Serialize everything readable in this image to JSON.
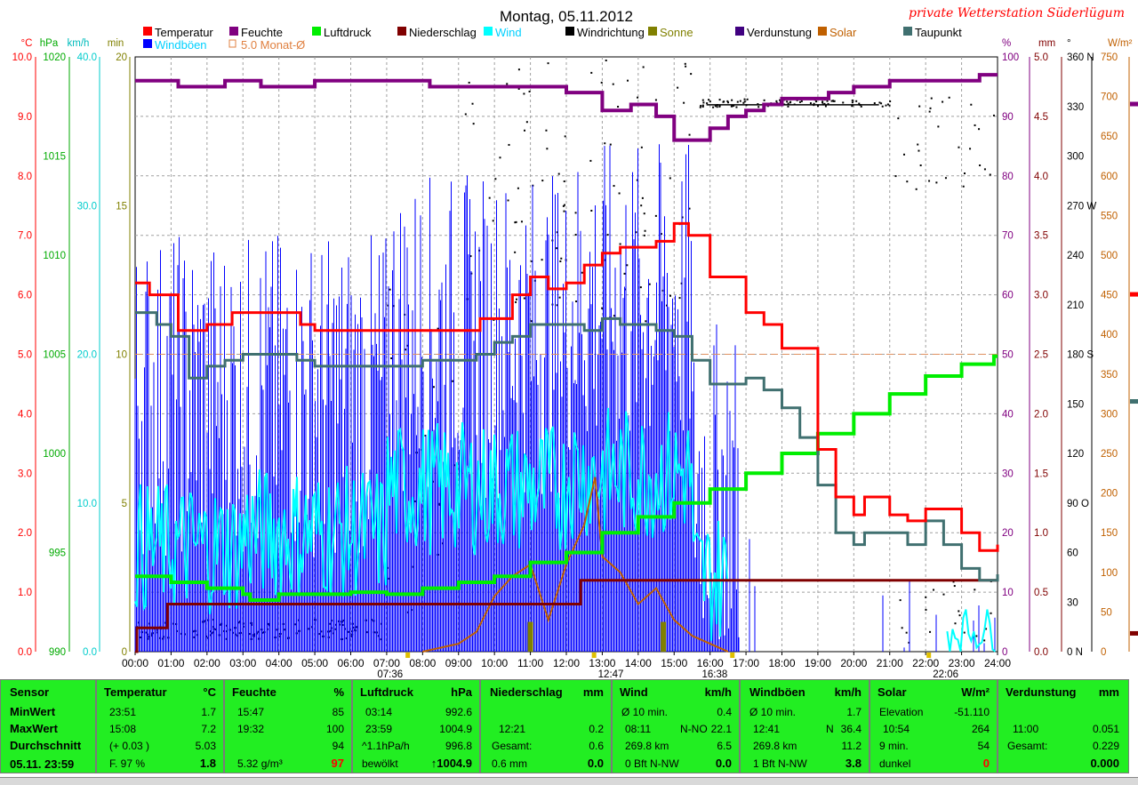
{
  "header": {
    "title": "Montag, 05.11.2012",
    "station": "private Wetterstation Süderlügum"
  },
  "legend": [
    {
      "label": "Temperatur",
      "color": "#ff0000"
    },
    {
      "label": "Feuchte",
      "color": "#800080"
    },
    {
      "label": "Luftdruck",
      "color": "#00ee00"
    },
    {
      "label": "Niederschlag",
      "color": "#800000"
    },
    {
      "label": "Wind",
      "color": "#00ffff"
    },
    {
      "label": "Windrichtung",
      "color": "#000000"
    },
    {
      "label": "Sonne",
      "color": "#808000"
    },
    {
      "label": "Verdunstung",
      "color": "#400080"
    },
    {
      "label": "Solar",
      "color": "#c06000"
    },
    {
      "label": "Taupunkt",
      "color": "#407070"
    },
    {
      "label": "Windböen",
      "color": "#0000ff"
    },
    {
      "label": "5.0 Monat-Ø",
      "color": "#e08040"
    }
  ],
  "axes": {
    "left_units": [
      "°C",
      "hPa",
      "km/h",
      "min"
    ],
    "right_units": [
      "%",
      "mm",
      "°",
      "W/m²"
    ],
    "temp_ticks": [
      "10.0",
      "9.0",
      "8.0",
      "7.0",
      "6.0",
      "5.0",
      "4.0",
      "3.0",
      "2.0",
      "1.0",
      "0.0"
    ],
    "hpa_ticks": [
      "1020",
      "1015",
      "1010",
      "1005",
      "1000",
      "995",
      "990"
    ],
    "kmh_ticks": [
      "40.0",
      "30.0",
      "20.0",
      "10.0",
      "0.0"
    ],
    "min_ticks": [
      "20",
      "15",
      "10",
      "5",
      "0"
    ],
    "pct_ticks": [
      "100",
      "90",
      "80",
      "70",
      "60",
      "50",
      "40",
      "30",
      "20",
      "10",
      "0"
    ],
    "mm_ticks": [
      "5.0",
      "4.5",
      "4.0",
      "3.5",
      "3.0",
      "2.5",
      "2.0",
      "1.5",
      "1.0",
      "0.5",
      "0.0"
    ],
    "deg_ticks": [
      "360 N",
      "330",
      "300",
      "270 W",
      "240",
      "210",
      "180 S",
      "150",
      "120",
      "90  O",
      "60",
      "30",
      "0   N"
    ],
    "wm2_ticks": [
      "750",
      "700",
      "650",
      "600",
      "550",
      "500",
      "450",
      "400",
      "350",
      "300",
      "250",
      "200",
      "150",
      "100",
      "50",
      "0"
    ],
    "x_ticks": [
      "00:00",
      "01:00",
      "02:00",
      "03:00",
      "04:00",
      "05:00",
      "06:00",
      "07:00",
      "08:00",
      "09:00",
      "10:00",
      "11:00",
      "12:00",
      "13:00",
      "14:00",
      "15:00",
      "16:00",
      "17:00",
      "18:00",
      "19:00",
      "20:00",
      "21:00",
      "22:00",
      "23:00",
      "24:00"
    ],
    "x_markers": [
      "07:36",
      "12:47",
      "16:38",
      "22:06"
    ]
  },
  "chart_data": {
    "type": "line",
    "title": "Montag, 05.11.2012",
    "x_unit": "time of day (hours)",
    "xlim": [
      0,
      24
    ],
    "grid": true,
    "series": [
      {
        "name": "Temperatur",
        "unit": "°C",
        "ylim": [
          0,
          10
        ],
        "points": [
          [
            0,
            6.2
          ],
          [
            0.4,
            6.0
          ],
          [
            1.2,
            5.4
          ],
          [
            2,
            5.5
          ],
          [
            2.7,
            5.7
          ],
          [
            3.5,
            5.7
          ],
          [
            4.2,
            5.7
          ],
          [
            4.6,
            5.5
          ],
          [
            5,
            5.4
          ],
          [
            6,
            5.4
          ],
          [
            7,
            5.4
          ],
          [
            8,
            5.4
          ],
          [
            9,
            5.4
          ],
          [
            9.6,
            5.6
          ],
          [
            10.5,
            6.0
          ],
          [
            11,
            6.3
          ],
          [
            11.5,
            6.1
          ],
          [
            12,
            6.2
          ],
          [
            12.5,
            6.5
          ],
          [
            13,
            6.7
          ],
          [
            13.5,
            6.8
          ],
          [
            14.5,
            6.9
          ],
          [
            15,
            7.2
          ],
          [
            15.4,
            7.0
          ],
          [
            16,
            6.3
          ],
          [
            17,
            5.7
          ],
          [
            17.5,
            5.5
          ],
          [
            18,
            5.1
          ],
          [
            19,
            3.4
          ],
          [
            19.5,
            2.6
          ],
          [
            20,
            2.3
          ],
          [
            20.3,
            2.6
          ],
          [
            21,
            2.3
          ],
          [
            21.5,
            2.2
          ],
          [
            22,
            2.4
          ],
          [
            22.5,
            2.4
          ],
          [
            23,
            2.0
          ],
          [
            23.5,
            1.7
          ],
          [
            24,
            1.8
          ]
        ]
      },
      {
        "name": "Feuchte",
        "unit": "%",
        "ylim": [
          0,
          100
        ],
        "points": [
          [
            0,
            96
          ],
          [
            1,
            96
          ],
          [
            1.2,
            95
          ],
          [
            2,
            95
          ],
          [
            2.5,
            96
          ],
          [
            3,
            96
          ],
          [
            3.5,
            95
          ],
          [
            5,
            96
          ],
          [
            8,
            96
          ],
          [
            8.2,
            95
          ],
          [
            9,
            95
          ],
          [
            10,
            95
          ],
          [
            12,
            94
          ],
          [
            12.5,
            94
          ],
          [
            13,
            91
          ],
          [
            13.8,
            92
          ],
          [
            14.5,
            90
          ],
          [
            15,
            86
          ],
          [
            15.8,
            86
          ],
          [
            16,
            88
          ],
          [
            16.5,
            90
          ],
          [
            17,
            91
          ],
          [
            17.5,
            92
          ],
          [
            18,
            93
          ],
          [
            19,
            93
          ],
          [
            19.3,
            94
          ],
          [
            20,
            95
          ],
          [
            20.5,
            95
          ],
          [
            21,
            96
          ],
          [
            23,
            96
          ],
          [
            23.5,
            97
          ],
          [
            24,
            97
          ]
        ]
      },
      {
        "name": "Luftdruck",
        "unit": "hPa",
        "ylim": [
          990,
          1020
        ],
        "points": [
          [
            0,
            993.8
          ],
          [
            1,
            993.5
          ],
          [
            2,
            993.2
          ],
          [
            3,
            992.9
          ],
          [
            3.2,
            992.6
          ],
          [
            4,
            992.9
          ],
          [
            5,
            992.9
          ],
          [
            6,
            993.0
          ],
          [
            7,
            992.9
          ],
          [
            8,
            993.2
          ],
          [
            9,
            993.5
          ],
          [
            10,
            993.8
          ],
          [
            11,
            994.5
          ],
          [
            12,
            995.0
          ],
          [
            13,
            996.0
          ],
          [
            14,
            996.8
          ],
          [
            15,
            997.5
          ],
          [
            16,
            998.2
          ],
          [
            17,
            999.0
          ],
          [
            18,
            1000.0
          ],
          [
            19,
            1001.0
          ],
          [
            20,
            1002.0
          ],
          [
            21,
            1003.0
          ],
          [
            22,
            1003.9
          ],
          [
            23,
            1004.5
          ],
          [
            23.9,
            1004.9
          ],
          [
            24,
            1004.9
          ]
        ]
      },
      {
        "name": "Taupunkt",
        "unit": "°C",
        "ylim": [
          0,
          10
        ],
        "points": [
          [
            0,
            5.7
          ],
          [
            0.6,
            5.5
          ],
          [
            1,
            5.3
          ],
          [
            1.5,
            4.6
          ],
          [
            2,
            4.8
          ],
          [
            2.5,
            4.9
          ],
          [
            3,
            5.0
          ],
          [
            4,
            5.0
          ],
          [
            4.5,
            4.9
          ],
          [
            5,
            4.8
          ],
          [
            6,
            4.8
          ],
          [
            7,
            4.8
          ],
          [
            8,
            4.9
          ],
          [
            9,
            4.9
          ],
          [
            9.5,
            5.0
          ],
          [
            10,
            5.2
          ],
          [
            10.5,
            5.3
          ],
          [
            11,
            5.5
          ],
          [
            12,
            5.5
          ],
          [
            12.5,
            5.4
          ],
          [
            13,
            5.6
          ],
          [
            13.5,
            5.5
          ],
          [
            14,
            5.5
          ],
          [
            14.5,
            5.4
          ],
          [
            15,
            5.3
          ],
          [
            15.5,
            4.9
          ],
          [
            16,
            4.5
          ],
          [
            16.5,
            4.5
          ],
          [
            17,
            4.6
          ],
          [
            17.5,
            4.4
          ],
          [
            18,
            4.1
          ],
          [
            18.5,
            3.6
          ],
          [
            19,
            2.8
          ],
          [
            19.5,
            2.0
          ],
          [
            20,
            1.8
          ],
          [
            20.3,
            2.0
          ],
          [
            21,
            2.0
          ],
          [
            21.5,
            1.8
          ],
          [
            22,
            2.2
          ],
          [
            22.5,
            1.8
          ],
          [
            23,
            1.4
          ],
          [
            23.5,
            1.2
          ],
          [
            24,
            1.3
          ]
        ]
      },
      {
        "name": "Niederschlag",
        "unit": "mm",
        "ylim": [
          0,
          5
        ],
        "points": [
          [
            0,
            0
          ],
          [
            0.05,
            0.2
          ],
          [
            0.8,
            0.2
          ],
          [
            0.9,
            0.4
          ],
          [
            12.3,
            0.4
          ],
          [
            12.4,
            0.6
          ],
          [
            24,
            0.6
          ]
        ]
      },
      {
        "name": "Solar",
        "unit": "W/m²",
        "ylim": [
          0,
          750
        ],
        "points": [
          [
            8,
            0
          ],
          [
            8.5,
            5
          ],
          [
            9,
            10
          ],
          [
            9.5,
            25
          ],
          [
            10,
            70
          ],
          [
            10.5,
            95
          ],
          [
            11,
            110
          ],
          [
            11.5,
            40
          ],
          [
            12,
            110
          ],
          [
            12.5,
            160
          ],
          [
            12.8,
            220
          ],
          [
            13,
            120
          ],
          [
            13.5,
            100
          ],
          [
            14,
            60
          ],
          [
            14.5,
            80
          ],
          [
            15,
            40
          ],
          [
            15.5,
            20
          ],
          [
            16,
            10
          ],
          [
            16.5,
            0
          ]
        ]
      },
      {
        "name": "Windböen",
        "unit": "km/h",
        "ylim": [
          0,
          40
        ],
        "values_max": 36.4,
        "values_avg": 11.2
      },
      {
        "name": "Wind",
        "unit": "km/h",
        "ylim": [
          0,
          40
        ],
        "values_max": 22.1,
        "values_avg": 6.5
      },
      {
        "name": "Sonne",
        "unit": "min",
        "ylim": [
          0,
          20
        ],
        "bars": [
          [
            11,
            1.0
          ],
          [
            14.7,
            1.0
          ]
        ]
      }
    ],
    "reference_line": {
      "name": "5.0 Monat-Ø",
      "unit": "°C",
      "value": 5.0
    }
  },
  "stats": {
    "sensor": {
      "header": "Sensor",
      "rows": [
        "MinWert",
        "MaxWert",
        "Durchschnitt",
        "05.11. 23:59"
      ]
    },
    "temperatur": {
      "header": "Temperatur",
      "unit": "°C",
      "rows": [
        [
          "23:51",
          "1.7"
        ],
        [
          "15:08",
          "7.2"
        ],
        [
          "(+ 0.03 )",
          "5.03"
        ],
        [
          "F. 97 %",
          "1.8"
        ]
      ]
    },
    "feuchte": {
      "header": "Feuchte",
      "unit": "%",
      "rows": [
        [
          "15:47",
          "85"
        ],
        [
          "19:32",
          "100"
        ],
        [
          "",
          "94"
        ],
        [
          "5.32 g/m³",
          "97"
        ]
      ]
    },
    "luftdruck": {
      "header": "Luftdruck",
      "unit": "hPa",
      "rows": [
        [
          "03:14",
          "992.6"
        ],
        [
          "23:59",
          "1004.9"
        ],
        [
          "^1.1hPa/h",
          "996.8"
        ],
        [
          "bewölkt",
          "1004.9"
        ]
      ]
    },
    "niederschlag": {
      "header": "Niederschlag",
      "unit": "mm",
      "rows": [
        [
          "",
          ""
        ],
        [
          "12:21",
          "0.2"
        ],
        [
          "Gesamt:",
          "0.6"
        ],
        [
          "0.6 mm",
          "0.0"
        ]
      ]
    },
    "wind": {
      "header": "Wind",
      "unit": "km/h",
      "rows": [
        [
          "Ø 10 min.",
          "",
          "0.4"
        ],
        [
          "08:11",
          "N-NO",
          "22.1"
        ],
        [
          "269.8 km",
          "",
          "6.5"
        ],
        [
          "0 Bft N-NW",
          "",
          "0.0"
        ]
      ]
    },
    "windboeen": {
      "header": "Windböen",
      "unit": "km/h",
      "rows": [
        [
          "Ø 10 min.",
          "",
          "1.7"
        ],
        [
          "12:41",
          "N",
          "36.4"
        ],
        [
          "269.8 km",
          "",
          "11.2"
        ],
        [
          "1 Bft N-NW",
          "",
          "3.8"
        ]
      ]
    },
    "solar": {
      "header": "Solar",
      "unit": "W/m²",
      "rows": [
        [
          "Elevation",
          "-51.110"
        ],
        [
          "10:54",
          "264"
        ],
        [
          "9 min.",
          "54"
        ],
        [
          "dunkel",
          "0"
        ]
      ]
    },
    "verdunstung": {
      "header": "Verdunstung",
      "unit": "mm",
      "rows": [
        [
          "",
          ""
        ],
        [
          "11:00",
          "0.051"
        ],
        [
          "Gesamt:",
          "0.229"
        ],
        [
          "",
          "0.000"
        ]
      ]
    }
  }
}
